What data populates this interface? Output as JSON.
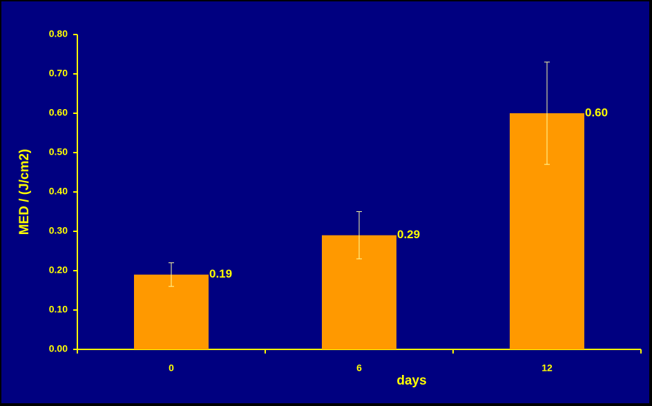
{
  "chart_data": {
    "type": "bar",
    "x_label": "days",
    "y_label": "MED / (J/cm2)",
    "categories": [
      "0",
      "6",
      "12"
    ],
    "values": [
      0.19,
      0.29,
      0.6
    ],
    "value_labels": [
      "0.19",
      "0.29",
      "0.60"
    ],
    "errors": [
      0.03,
      0.06,
      0.13
    ],
    "color": "#ff9900",
    "background": "#000080",
    "axis_color": "#ffff00",
    "error_color": "#ffffa0",
    "ylim": [
      0,
      0.8
    ],
    "yticks": [
      {
        "value": 0,
        "label": "0.00"
      },
      {
        "value": 0.1,
        "label": "0.10"
      },
      {
        "value": 0.2,
        "label": "0.20"
      },
      {
        "value": 0.3,
        "label": "0.30"
      },
      {
        "value": 0.4,
        "label": "0.40"
      },
      {
        "value": 0.5,
        "label": "0.50"
      },
      {
        "value": 0.6,
        "label": "0.60"
      },
      {
        "value": 0.7,
        "label": "0.70"
      },
      {
        "value": 0.8,
        "label": "0.80"
      }
    ]
  }
}
